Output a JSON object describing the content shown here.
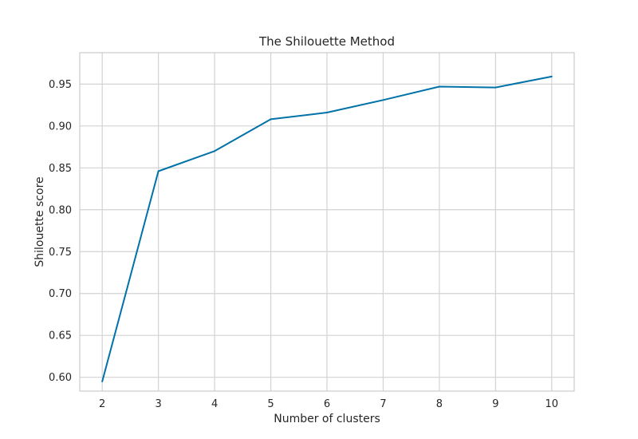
{
  "chart_data": {
    "type": "line",
    "title": "The Shilouette Method",
    "xlabel": "Number of clusters",
    "ylabel": "Shilouette score",
    "x": [
      2,
      3,
      4,
      5,
      6,
      7,
      8,
      9,
      10
    ],
    "series": [
      {
        "values": [
          0.595,
          0.846,
          0.87,
          0.908,
          0.916,
          0.931,
          0.947,
          0.946,
          0.959
        ]
      }
    ],
    "xlim": [
      1.6,
      10.4
    ],
    "ylim": [
      0.5835,
      0.9875
    ],
    "xticks": [
      2,
      3,
      4,
      5,
      6,
      7,
      8,
      9,
      10
    ],
    "xtick_labels": [
      "2",
      "3",
      "4",
      "5",
      "6",
      "7",
      "8",
      "9",
      "10"
    ],
    "yticks": [
      0.6,
      0.65,
      0.7,
      0.75,
      0.8,
      0.85,
      0.9,
      0.95
    ],
    "ytick_labels": [
      "0.60",
      "0.65",
      "0.70",
      "0.75",
      "0.80",
      "0.85",
      "0.90",
      "0.95"
    ],
    "grid": true,
    "legend": "none",
    "line_color": "#0072a8",
    "grid_color": "#d3d3d3"
  }
}
